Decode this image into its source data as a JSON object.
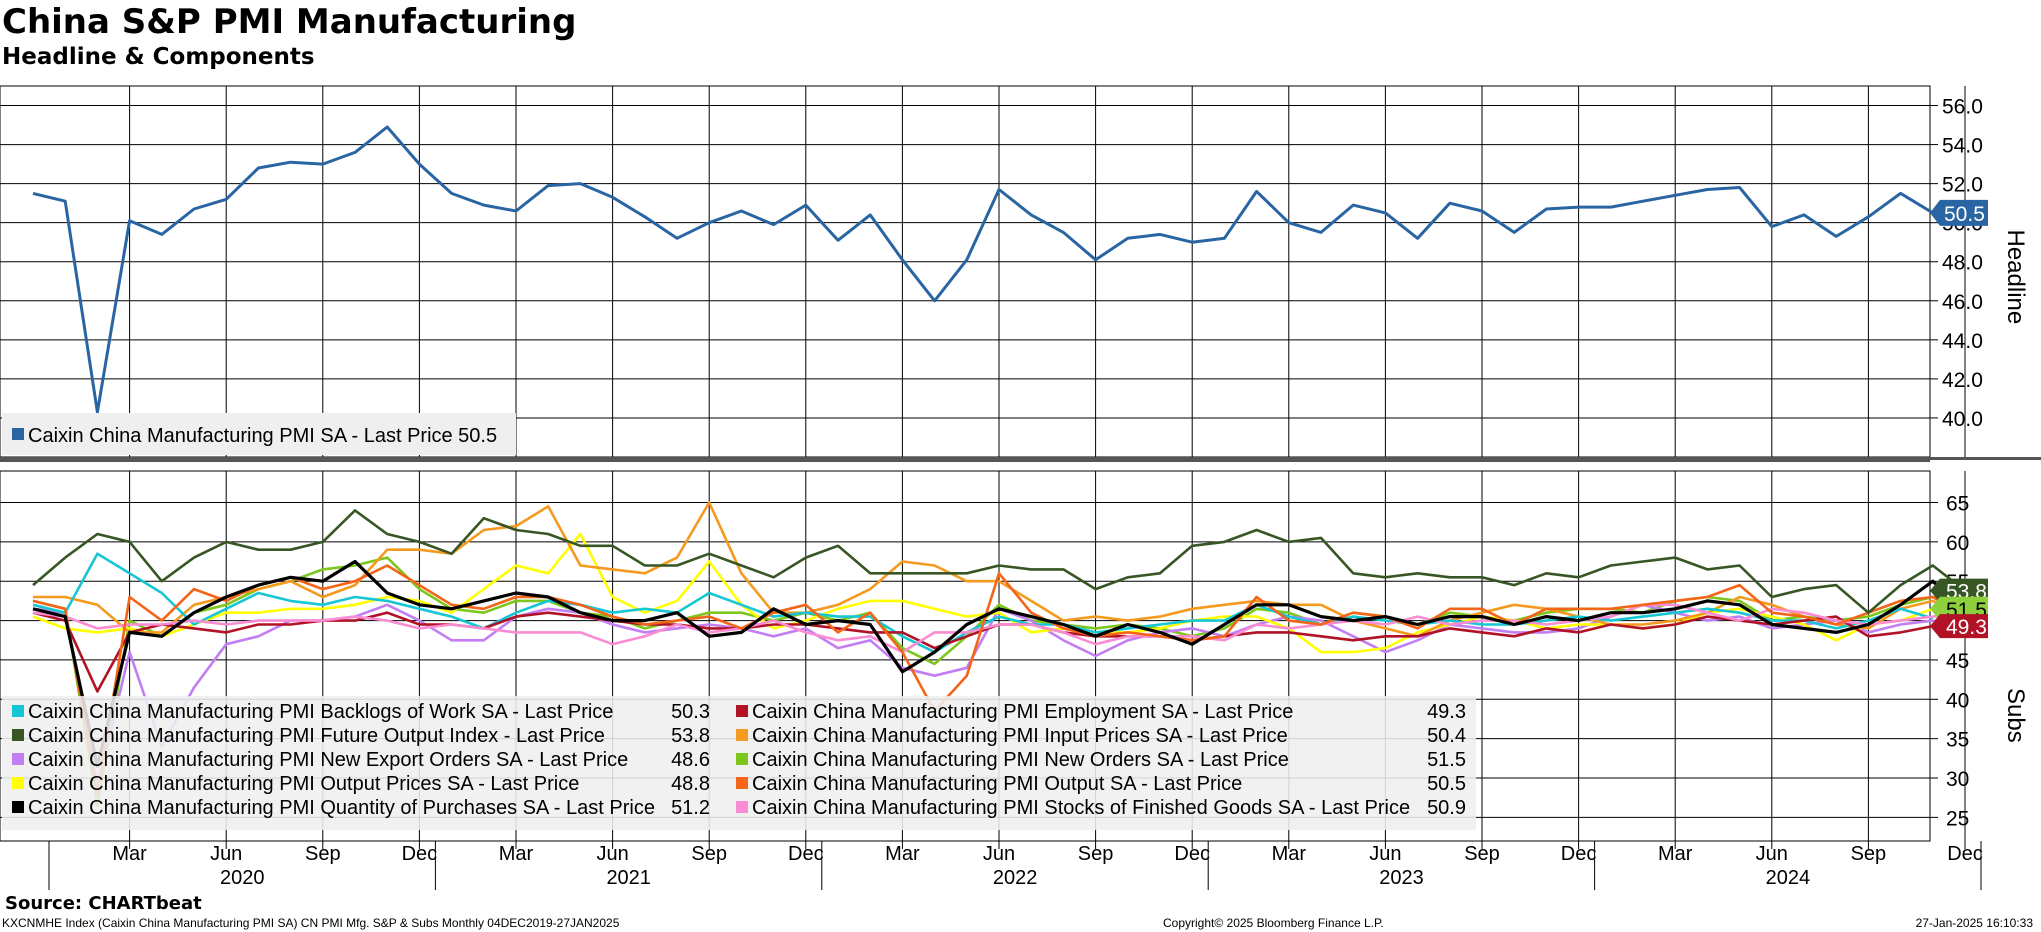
{
  "header": {
    "title": "China S&P PMI Manufacturing",
    "subtitle": "Headline & Components"
  },
  "footer": {
    "source": "Source: CHARTbeat",
    "description": "KXCNMHE Index (Caixin China Manufacturing PMI SA) CN PMI Mfg. S&P & Subs  Monthly 04DEC2019-27JAN2025",
    "copyright": "Copyright© 2025 Bloomberg Finance L.P.",
    "timestamp": "27-Jan-2025 16:10:33"
  },
  "chart_data": [
    {
      "type": "line",
      "panel": "top",
      "ylabel": "Headline",
      "ylim": [
        38,
        57
      ],
      "yticks": [
        40.0,
        42.0,
        44.0,
        46.0,
        48.0,
        50.0,
        52.0,
        54.0,
        56.0
      ],
      "ytick_labels": [
        "40.0",
        "42.0",
        "44.0",
        "46.0",
        "48.0",
        "50.0",
        "52.0",
        "54.0",
        "56.0"
      ],
      "x_start": "2019-12",
      "month_ticks": [
        "Mar",
        "Jun",
        "Sep",
        "Dec",
        "Mar",
        "Jun",
        "Sep",
        "Dec",
        "Mar",
        "Jun",
        "Sep",
        "Dec",
        "Mar",
        "Jun",
        "Sep",
        "Dec",
        "Mar",
        "Jun",
        "Sep",
        "Dec"
      ],
      "year_labels": [
        "2020",
        "2021",
        "2022",
        "2023",
        "2024"
      ],
      "grid": true,
      "legend_position": "bottom-left",
      "series": [
        {
          "name": "Caixin China Manufacturing PMI SA - Last Price",
          "color": "#2a65a3",
          "last_label": "50.5",
          "values": [
            51.5,
            51.1,
            40.3,
            50.1,
            49.4,
            50.7,
            51.2,
            52.8,
            53.1,
            53.0,
            53.6,
            54.9,
            53.0,
            51.5,
            50.9,
            50.6,
            51.9,
            52.0,
            51.3,
            50.3,
            49.2,
            50.0,
            50.6,
            49.9,
            50.9,
            49.1,
            50.4,
            48.1,
            46.0,
            48.1,
            51.7,
            50.4,
            49.5,
            48.1,
            49.2,
            49.4,
            49.0,
            49.2,
            51.6,
            50.0,
            49.5,
            50.9,
            50.5,
            49.2,
            51.0,
            50.6,
            49.5,
            50.7,
            50.8,
            50.8,
            51.1,
            51.4,
            51.7,
            51.8,
            49.8,
            50.4,
            49.3,
            50.3,
            51.5,
            50.5
          ]
        }
      ]
    },
    {
      "type": "line",
      "panel": "bottom",
      "ylabel": "Subs",
      "ylim": [
        22,
        69
      ],
      "yticks": [
        25,
        30,
        35,
        40,
        45,
        50,
        55,
        60,
        65
      ],
      "ytick_labels": [
        "25",
        "30",
        "35",
        "40",
        "45",
        "50",
        "55",
        "60",
        "65"
      ],
      "x_start": "2019-12",
      "grid": true,
      "legend_position": "bottom-left",
      "last_badges": [
        {
          "label": "53.8",
          "color": "#375623",
          "text_color": "#ffffff"
        },
        {
          "label": "51.5",
          "color": "#8fd13c",
          "text_color": "#000000"
        },
        {
          "label": "49.3",
          "color": "#b11226",
          "text_color": "#ffffff"
        }
      ],
      "series": [
        {
          "name": "Caixin China Manufacturing PMI Backlogs of Work SA - Last Price",
          "legend_value": "50.3",
          "color": "#16c7d3",
          "values": [
            52.0,
            51.0,
            58.5,
            56.0,
            53.5,
            49.5,
            51.5,
            53.5,
            52.5,
            52.0,
            53.0,
            52.5,
            51.5,
            50.5,
            49.0,
            51.0,
            52.5,
            52.0,
            51.0,
            51.5,
            51.0,
            53.5,
            52.0,
            50.5,
            51.0,
            50.5,
            50.5,
            48.0,
            46.0,
            48.5,
            50.5,
            49.5,
            49.5,
            48.5,
            49.0,
            49.5,
            50.0,
            50.0,
            52.0,
            50.5,
            49.5,
            50.5,
            50.0,
            49.5,
            50.0,
            49.5,
            49.5,
            50.0,
            50.5,
            50.0,
            50.5,
            51.0,
            51.5,
            51.0,
            50.0,
            50.0,
            49.0,
            50.0,
            51.5,
            50.3
          ]
        },
        {
          "name": "Caixin China Manufacturing PMI Employment SA - Last Price",
          "legend_value": "49.3",
          "color": "#b11226",
          "values": [
            51.0,
            50.0,
            41.0,
            48.5,
            49.5,
            49.0,
            48.5,
            49.5,
            49.5,
            50.0,
            50.0,
            51.0,
            49.5,
            49.5,
            49.0,
            50.5,
            51.0,
            50.5,
            50.0,
            49.5,
            49.5,
            49.0,
            49.0,
            49.5,
            49.5,
            49.0,
            48.5,
            48.5,
            46.5,
            48.0,
            49.5,
            49.5,
            48.5,
            48.0,
            48.0,
            48.0,
            47.5,
            48.0,
            48.5,
            48.5,
            48.0,
            47.5,
            48.0,
            48.0,
            49.0,
            48.5,
            48.0,
            49.0,
            48.5,
            49.5,
            49.0,
            49.5,
            50.5,
            50.0,
            49.5,
            50.0,
            50.5,
            48.0,
            48.5,
            49.3
          ]
        },
        {
          "name": "Caixin China Manufacturing PMI Future Output Index - Last Price",
          "legend_value": "53.8",
          "color": "#375623",
          "values": [
            54.5,
            58.0,
            61.0,
            60.0,
            55.0,
            58.0,
            60.0,
            59.0,
            59.0,
            60.0,
            64.0,
            61.0,
            60.0,
            58.5,
            63.0,
            61.5,
            61.0,
            59.5,
            59.5,
            57.0,
            57.0,
            58.5,
            57.0,
            55.5,
            58.0,
            59.5,
            56.0,
            56.0,
            56.0,
            56.0,
            57.0,
            56.5,
            56.5,
            54.0,
            55.5,
            56.0,
            59.5,
            60.0,
            61.5,
            60.0,
            60.5,
            56.0,
            55.5,
            56.0,
            55.5,
            55.5,
            54.5,
            56.0,
            55.5,
            57.0,
            57.5,
            58.0,
            56.5,
            57.0,
            53.0,
            54.0,
            54.5,
            51.0,
            54.5,
            57.0,
            53.8
          ]
        },
        {
          "name": "Caixin China Manufacturing PMI Input Prices SA - Last Price",
          "legend_value": "50.4",
          "color": "#f59a1e",
          "values": [
            53.0,
            53.0,
            52.0,
            48.5,
            48.5,
            52.0,
            53.0,
            54.0,
            55.0,
            53.0,
            54.5,
            59.0,
            59.0,
            58.5,
            61.5,
            62.0,
            64.5,
            57.0,
            56.5,
            56.0,
            58.0,
            65.0,
            56.0,
            51.0,
            51.0,
            52.0,
            54.0,
            57.5,
            57.0,
            55.0,
            55.0,
            52.5,
            50.0,
            50.5,
            50.0,
            50.5,
            51.5,
            52.0,
            52.5,
            52.0,
            52.0,
            50.0,
            49.0,
            48.0,
            50.0,
            51.0,
            52.0,
            51.5,
            50.5,
            49.5,
            49.5,
            50.0,
            51.0,
            53.0,
            52.0,
            50.5,
            49.5,
            49.0,
            51.5,
            52.5,
            50.4
          ]
        },
        {
          "name": "Caixin China Manufacturing PMI New Export Orders SA - Last Price",
          "legend_value": "48.6",
          "color": "#c27ef2",
          "values": [
            51.5,
            51.0,
            29.0,
            46.0,
            34.0,
            41.5,
            47.0,
            48.0,
            50.0,
            50.0,
            50.5,
            52.0,
            50.0,
            47.5,
            47.5,
            50.5,
            51.5,
            51.0,
            49.5,
            48.5,
            49.0,
            49.5,
            49.0,
            48.0,
            49.0,
            46.5,
            47.5,
            44.0,
            43.0,
            44.0,
            51.5,
            50.0,
            47.5,
            45.5,
            47.5,
            48.5,
            49.0,
            48.0,
            49.5,
            50.5,
            50.0,
            48.0,
            46.0,
            47.5,
            49.5,
            49.0,
            48.5,
            48.5,
            49.0,
            50.5,
            52.0,
            51.0,
            50.0,
            50.5,
            49.0,
            49.5,
            50.0,
            48.5,
            49.5,
            50.0,
            48.6
          ]
        },
        {
          "name": "Caixin China Manufacturing PMI New Orders SA - Last Price",
          "legend_value": "51.5",
          "color": "#7dc71d",
          "values": [
            52.5,
            51.5,
            26.5,
            50.0,
            48.0,
            51.0,
            52.0,
            54.0,
            55.0,
            56.5,
            57.0,
            58.0,
            54.0,
            51.5,
            51.0,
            52.5,
            52.5,
            51.0,
            50.5,
            49.0,
            50.0,
            51.0,
            51.0,
            50.0,
            51.0,
            50.0,
            51.0,
            46.5,
            44.5,
            48.0,
            52.0,
            50.0,
            49.5,
            49.0,
            49.5,
            49.0,
            48.0,
            49.0,
            51.5,
            51.0,
            49.5,
            51.0,
            50.5,
            49.5,
            51.0,
            50.5,
            50.0,
            51.0,
            51.5,
            51.5,
            51.0,
            52.5,
            53.0,
            52.5,
            50.0,
            50.5,
            50.0,
            50.5,
            52.0,
            53.0,
            51.5
          ]
        },
        {
          "name": "Caixin China Manufacturing PMI Output Prices SA - Last Price",
          "legend_value": "48.8",
          "color": "#ffff00",
          "values": [
            50.5,
            49.0,
            48.5,
            49.0,
            48.0,
            49.5,
            51.0,
            51.0,
            51.5,
            51.5,
            52.0,
            53.0,
            52.5,
            51.0,
            54.0,
            57.0,
            56.0,
            61.0,
            53.0,
            51.0,
            52.5,
            57.5,
            52.0,
            49.0,
            50.0,
            51.5,
            52.5,
            52.5,
            51.5,
            50.5,
            51.0,
            48.5,
            49.0,
            48.5,
            48.5,
            49.0,
            50.0,
            50.5,
            50.5,
            49.0,
            46.0,
            46.0,
            46.5,
            48.5,
            49.5,
            50.5,
            50.0,
            49.0,
            49.5,
            49.5,
            49.0,
            49.5,
            51.0,
            51.5,
            50.5,
            49.5,
            47.5,
            49.5,
            50.0,
            51.5,
            48.8
          ]
        },
        {
          "name": "Caixin China Manufacturing PMI Output SA - Last Price",
          "legend_value": "50.5",
          "color": "#f4651a",
          "values": [
            52.5,
            51.5,
            28.0,
            53.0,
            50.0,
            54.0,
            52.5,
            54.5,
            55.5,
            54.0,
            55.0,
            57.0,
            54.5,
            52.0,
            51.5,
            53.0,
            53.0,
            52.0,
            50.5,
            49.5,
            50.0,
            50.5,
            49.0,
            51.0,
            52.0,
            48.5,
            51.0,
            46.0,
            38.5,
            43.0,
            56.0,
            51.0,
            49.0,
            48.0,
            48.5,
            48.0,
            47.5,
            48.0,
            53.0,
            50.0,
            49.5,
            51.0,
            50.5,
            49.0,
            51.5,
            51.5,
            49.5,
            51.5,
            51.5,
            51.5,
            52.0,
            52.5,
            53.0,
            54.5,
            51.0,
            50.5,
            49.5,
            51.0,
            52.5,
            53.0,
            50.5
          ]
        },
        {
          "name": "Caixin China Manufacturing PMI Quantity of Purchases SA - Last Price",
          "legend_value": "51.2",
          "color": "#000000",
          "values": [
            51.5,
            50.5,
            31.5,
            48.5,
            48.0,
            51.0,
            53.0,
            54.5,
            55.5,
            55.0,
            57.5,
            53.5,
            52.0,
            51.5,
            52.5,
            53.5,
            53.0,
            51.0,
            50.0,
            50.0,
            51.0,
            48.0,
            48.5,
            51.5,
            49.5,
            50.0,
            49.5,
            43.5,
            46.0,
            49.5,
            51.5,
            50.5,
            49.5,
            48.0,
            49.5,
            48.5,
            47.0,
            49.5,
            52.0,
            52.0,
            50.5,
            50.0,
            50.5,
            49.5,
            50.5,
            50.5,
            49.5,
            50.5,
            50.0,
            51.0,
            51.0,
            51.5,
            52.5,
            52.0,
            49.5,
            49.0,
            48.5,
            49.5,
            52.0,
            55.0,
            51.2
          ]
        },
        {
          "name": "Caixin China Manufacturing PMI Stocks of Finished Goods SA - Last Price",
          "legend_value": "50.9",
          "color": "#f98cd3",
          "values": [
            51.0,
            50.5,
            49.0,
            49.5,
            49.5,
            50.0,
            49.5,
            50.0,
            50.0,
            50.0,
            50.5,
            50.0,
            49.0,
            49.5,
            49.0,
            48.5,
            48.5,
            48.5,
            47.0,
            48.0,
            49.5,
            48.5,
            49.0,
            50.0,
            48.5,
            47.5,
            48.0,
            46.0,
            48.5,
            48.5,
            49.5,
            49.5,
            48.5,
            47.0,
            48.0,
            48.0,
            48.0,
            47.5,
            49.5,
            49.0,
            49.5,
            50.0,
            49.5,
            50.5,
            49.5,
            50.0,
            50.0,
            49.5,
            50.0,
            50.5,
            52.0,
            52.0,
            51.0,
            50.0,
            51.5,
            51.0,
            50.0,
            49.5,
            50.0,
            50.5,
            50.9
          ]
        }
      ]
    }
  ]
}
